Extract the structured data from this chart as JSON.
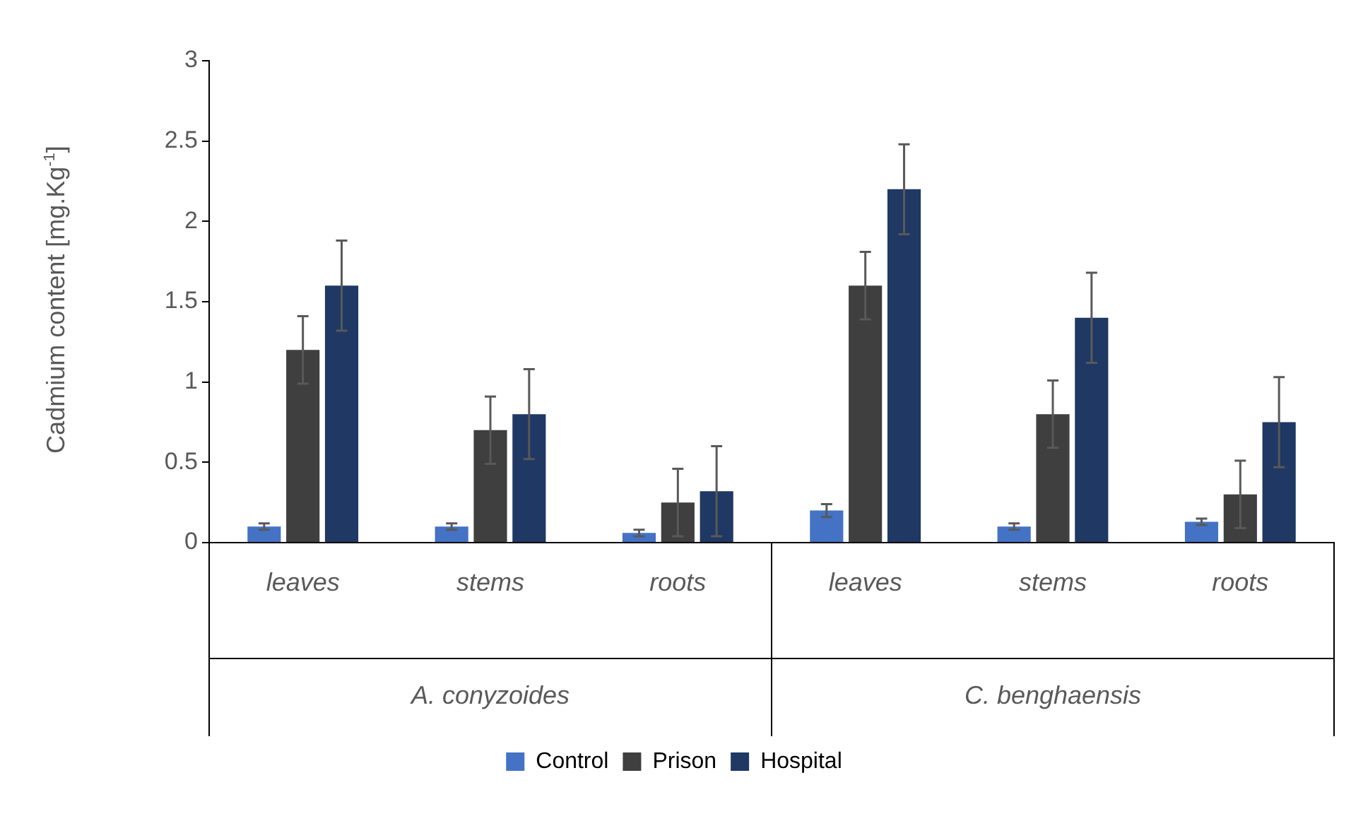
{
  "chart_data": {
    "type": "bar",
    "ylabel": "Cadmium content [mg.Kg$^{-1}$]",
    "categories": [
      "leaves",
      "stems",
      "roots",
      "leaves",
      "stems",
      "roots"
    ],
    "annotations": [
      "A. conyzoides",
      "C. benghaensis"
    ],
    "series": [
      {
        "name": "Control",
        "color": "#4472c4",
        "values": [
          0.1,
          0.1,
          0.06,
          0.2,
          0.1,
          0.13
        ],
        "errors": [
          0.02,
          0.02,
          0.02,
          0.04,
          0.02,
          0.02
        ]
      },
      {
        "name": "Prison",
        "color": "#3f3f3f",
        "values": [
          1.2,
          0.7,
          0.25,
          1.6,
          0.8,
          0.3
        ],
        "errors": [
          0.21,
          0.21,
          0.21,
          0.21,
          0.21,
          0.21
        ]
      },
      {
        "name": "Hospital",
        "color": "#1f3864",
        "values": [
          1.6,
          0.8,
          0.32,
          2.2,
          1.4,
          0.75
        ],
        "errors": [
          0.28,
          0.28,
          0.28,
          0.28,
          0.28,
          0.28
        ]
      }
    ],
    "ylim": [
      0,
      3
    ],
    "yticks": [
      0,
      0.5,
      1,
      1.5,
      2,
      2.5,
      3
    ],
    "grid": false,
    "legend": "bottom"
  }
}
